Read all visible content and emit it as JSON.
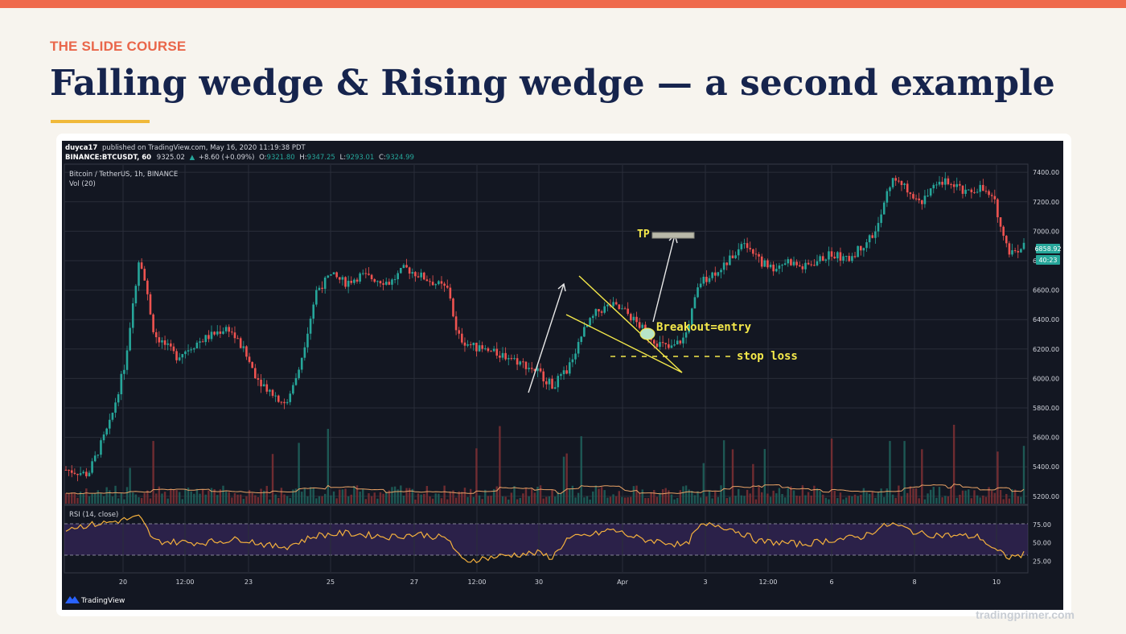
{
  "slide": {
    "eyebrow": "THE SLIDE COURSE",
    "title": "Falling wedge & Rising wedge — a second example",
    "watermark": "tradingprimer.com",
    "colors": {
      "accent_bar": "#ef6a4c",
      "title": "#16244d",
      "rule": "#f0b93a",
      "background": "#f7f4ee"
    }
  },
  "chart_header": {
    "author": "duyca17",
    "published": "published on TradingView.com, May 16, 2020 11:19:38 PDT",
    "symbol": "BINANCE:BTCUSDT, 60",
    "last": "9325.02",
    "change_icon": "triangle-up-icon",
    "change": "+8.60 (+0.09%)",
    "ohlc": [
      {
        "label": "O:",
        "value": "9321.80"
      },
      {
        "label": "H:",
        "value": "9347.25"
      },
      {
        "label": "L:",
        "value": "9293.01"
      },
      {
        "label": "C:",
        "value": "9324.99"
      }
    ]
  },
  "pane": {
    "legend": "Bitcoin / TetherUS, 1h, BINANCE",
    "volume_label": "Vol (20)",
    "rsi_label": "RSI (14, close)",
    "price_badge": "6858.92",
    "countdown_badge": "40:23",
    "brand": "TradingView",
    "brand_icon": "tradingview-logo-icon"
  },
  "annotations": {
    "tp": "TP",
    "breakout": "Breakout=entry",
    "stop_loss": "stop loss"
  },
  "chart_data": {
    "type": "candlestick",
    "series_label": "Bitcoin / TetherUS, 1h, BINANCE",
    "y_ticks": [
      "7400.00",
      "7200.00",
      "7000.00",
      "6800.00",
      "6600.00",
      "6400.00",
      "6200.00",
      "6000.00",
      "5800.00",
      "5600.00",
      "5400.00",
      "5200.00"
    ],
    "y_range": [
      5150,
      7450
    ],
    "rsi_ticks": [
      "75.00",
      "50.00",
      "25.00"
    ],
    "rsi_range": [
      10,
      100
    ],
    "x_ticks": [
      "20",
      "12:00",
      "23",
      "25",
      "27",
      "12:00",
      "30",
      "Apr",
      "3",
      "12:00",
      "6",
      "8",
      "10"
    ],
    "price_path": [
      [
        0,
        5380
      ],
      [
        1.5,
        5350
      ],
      [
        3,
        5700
      ],
      [
        4,
        6100
      ],
      [
        5,
        6850
      ],
      [
        6,
        6300
      ],
      [
        7.5,
        6150
      ],
      [
        9,
        6250
      ],
      [
        11,
        6350
      ],
      [
        12,
        6200
      ],
      [
        13,
        6000
      ],
      [
        14,
        5900
      ],
      [
        15,
        5820
      ],
      [
        16,
        6150
      ],
      [
        17,
        6600
      ],
      [
        18,
        6700
      ],
      [
        19,
        6650
      ],
      [
        20,
        6700
      ],
      [
        22,
        6650
      ],
      [
        23,
        6750
      ],
      [
        24,
        6700
      ],
      [
        25,
        6650
      ],
      [
        26,
        6600
      ],
      [
        26.5,
        6300
      ],
      [
        27,
        6250
      ],
      [
        28,
        6200
      ],
      [
        30,
        6150
      ],
      [
        32,
        6050
      ],
      [
        33,
        5950
      ],
      [
        34,
        6050
      ],
      [
        35,
        6300
      ],
      [
        36,
        6450
      ],
      [
        37,
        6500
      ],
      [
        38,
        6450
      ],
      [
        39,
        6350
      ],
      [
        40,
        6250
      ],
      [
        41,
        6200
      ],
      [
        42,
        6280
      ],
      [
        43,
        6650
      ],
      [
        44,
        6720
      ],
      [
        45,
        6800
      ],
      [
        46,
        6950
      ],
      [
        47,
        6800
      ],
      [
        48,
        6750
      ],
      [
        49,
        6800
      ],
      [
        50,
        6750
      ],
      [
        51,
        6800
      ],
      [
        52,
        6850
      ],
      [
        53,
        6800
      ],
      [
        54,
        6900
      ],
      [
        55,
        7000
      ],
      [
        56,
        7350
      ],
      [
        57,
        7300
      ],
      [
        58,
        7200
      ],
      [
        59,
        7300
      ],
      [
        60,
        7350
      ],
      [
        61,
        7250
      ],
      [
        62,
        7300
      ],
      [
        63,
        7200
      ],
      [
        64,
        6850
      ],
      [
        65,
        6900
      ]
    ],
    "rsi": [
      [
        0,
        70
      ],
      [
        3,
        78
      ],
      [
        5,
        85
      ],
      [
        6,
        52
      ],
      [
        9,
        50
      ],
      [
        12,
        55
      ],
      [
        14,
        45
      ],
      [
        15,
        45
      ],
      [
        17,
        60
      ],
      [
        19,
        63
      ],
      [
        22,
        58
      ],
      [
        24,
        62
      ],
      [
        26,
        55
      ],
      [
        26.5,
        35
      ],
      [
        27,
        25
      ],
      [
        30,
        33
      ],
      [
        32,
        36
      ],
      [
        33,
        30
      ],
      [
        34,
        55
      ],
      [
        36,
        62
      ],
      [
        37,
        68
      ],
      [
        39,
        55
      ],
      [
        41,
        50
      ],
      [
        42,
        45
      ],
      [
        43,
        72
      ],
      [
        44,
        75
      ],
      [
        45,
        70
      ],
      [
        46,
        62
      ],
      [
        47,
        52
      ],
      [
        50,
        48
      ],
      [
        52,
        54
      ],
      [
        54,
        58
      ],
      [
        55,
        68
      ],
      [
        56,
        76
      ],
      [
        58,
        62
      ],
      [
        60,
        60
      ],
      [
        62,
        58
      ],
      [
        63,
        40
      ],
      [
        64,
        30
      ],
      [
        65,
        34
      ]
    ]
  }
}
